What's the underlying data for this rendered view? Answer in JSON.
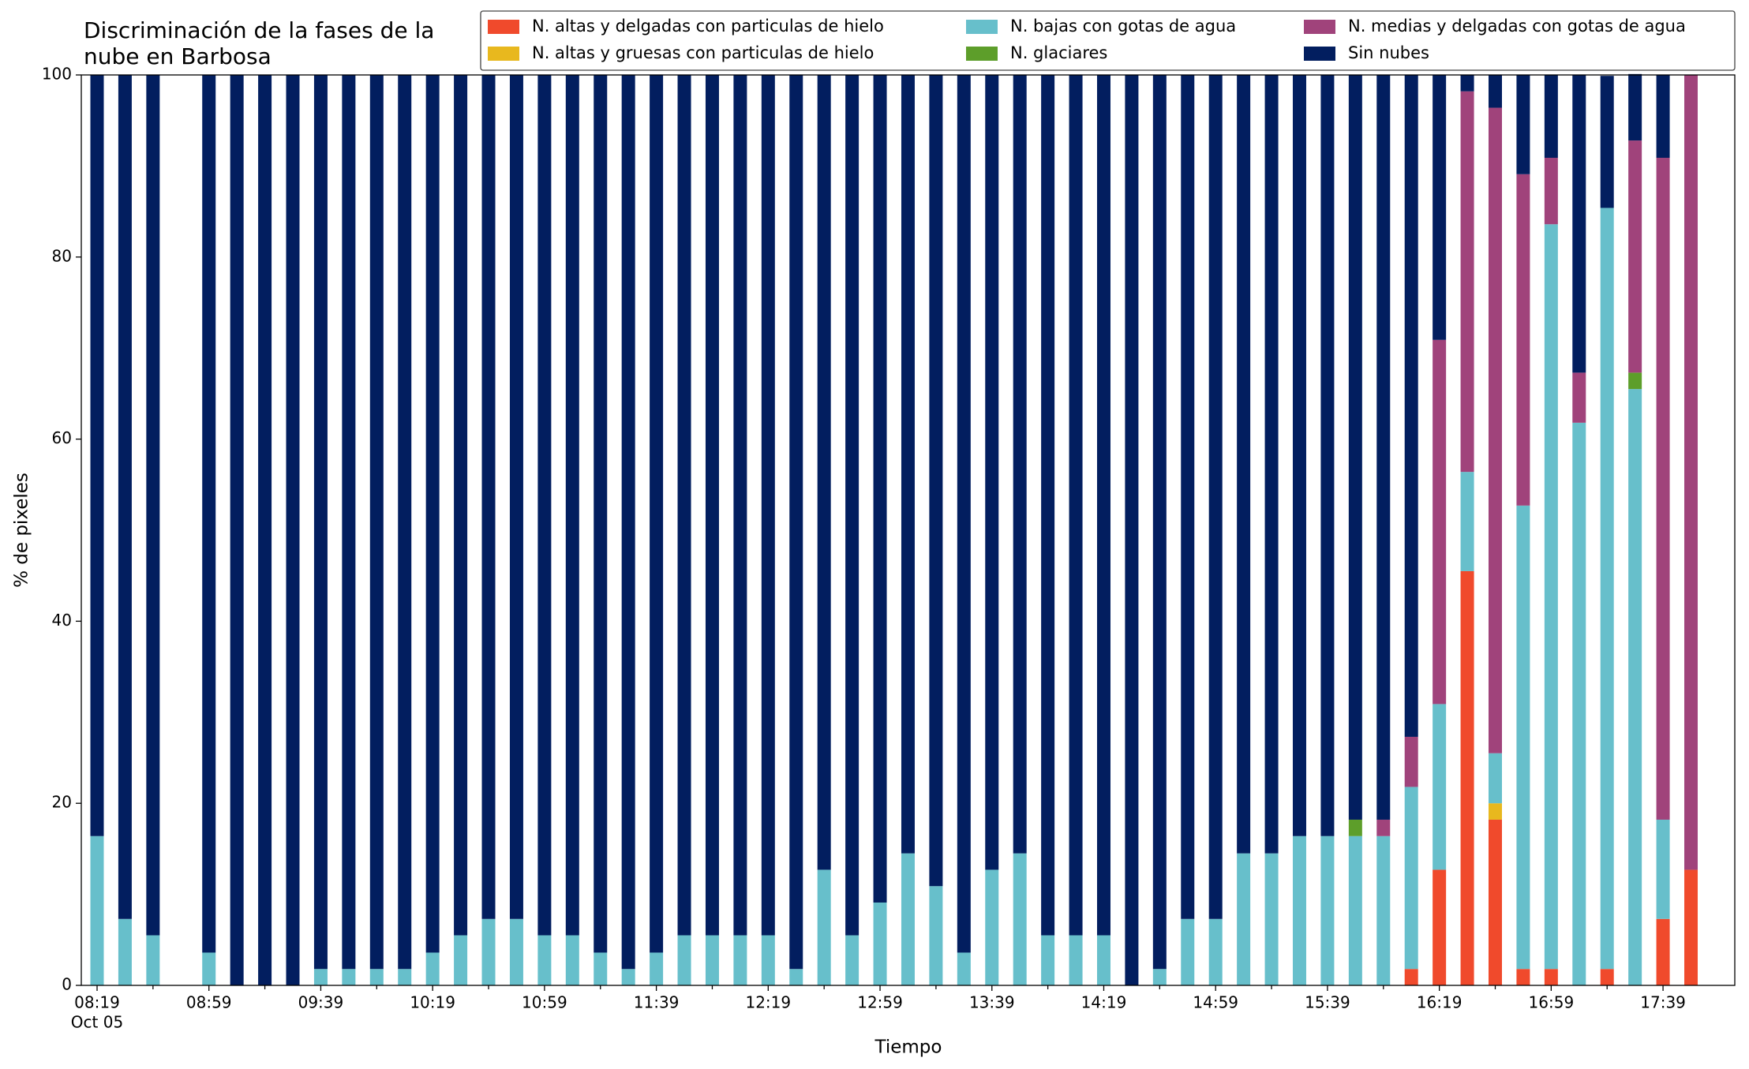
{
  "chart_data": {
    "type": "stacked_bar",
    "title": "Discriminación de la fases de la\nnube en Barbosa",
    "xlabel": "Tiempo",
    "ylabel": "% de pixeles",
    "x_date_label": "Oct 05",
    "categories": [
      "08:19",
      null,
      null,
      null,
      "08:59",
      null,
      null,
      null,
      "09:39",
      null,
      null,
      null,
      "10:19",
      null,
      null,
      null,
      "10:59",
      null,
      null,
      null,
      "11:39",
      null,
      null,
      null,
      "12:19",
      null,
      null,
      null,
      "12:59",
      null,
      null,
      null,
      "13:39",
      null,
      null,
      null,
      "14:19",
      null,
      null,
      null,
      "14:59",
      null,
      null,
      null,
      "15:39",
      null,
      null,
      null,
      "16:19",
      null,
      null,
      null,
      "16:59",
      null,
      null,
      null,
      "17:39",
      null
    ],
    "series": [
      {
        "name": "N. altas y delgadas con particulas de hielo",
        "color": "#f04a2c",
        "values": [
          0,
          0,
          0,
          null,
          0,
          0,
          0,
          0,
          0,
          0,
          0,
          0,
          0,
          0,
          0,
          0,
          0,
          0,
          0,
          0,
          0,
          0,
          0,
          0,
          0,
          0,
          0,
          0,
          0,
          0,
          0,
          0,
          0,
          0,
          0,
          0,
          0,
          0,
          0,
          0,
          0,
          0,
          0,
          0,
          0,
          0,
          0,
          1.8,
          12.7,
          45.5,
          18.2,
          1.8,
          1.8,
          0,
          1.8,
          0,
          7.3,
          12.7
        ]
      },
      {
        "name": "N. altas y gruesas con particulas de hielo",
        "color": "#e8b81e",
        "values": [
          0,
          0,
          0,
          null,
          0,
          0,
          0,
          0,
          0,
          0,
          0,
          0,
          0,
          0,
          0,
          0,
          0,
          0,
          0,
          0,
          0,
          0,
          0,
          0,
          0,
          0,
          0,
          0,
          0,
          0,
          0,
          0,
          0,
          0,
          0,
          0,
          0,
          0,
          0,
          0,
          0,
          0,
          0,
          0,
          0,
          0,
          0,
          0,
          0,
          0,
          1.8,
          0,
          0,
          0,
          0,
          0,
          0,
          0
        ]
      },
      {
        "name": "N. bajas con gotas de agua",
        "color": "#67bfcb",
        "values": [
          16.4,
          7.3,
          5.5,
          null,
          3.6,
          0,
          0,
          0,
          1.8,
          1.8,
          1.8,
          1.8,
          3.6,
          5.5,
          7.3,
          7.3,
          5.5,
          5.5,
          3.6,
          1.8,
          3.6,
          5.5,
          5.5,
          5.5,
          5.5,
          1.8,
          12.7,
          5.5,
          9.1,
          14.5,
          10.9,
          3.6,
          12.7,
          14.5,
          5.5,
          5.5,
          5.5,
          0,
          1.8,
          7.3,
          7.3,
          14.5,
          14.5,
          16.4,
          16.4,
          16.4,
          16.4,
          20,
          18.2,
          10.9,
          5.5,
          50.9,
          81.8,
          61.8,
          83.6,
          65.5,
          10.9,
          0
        ]
      },
      {
        "name": "N. glaciares",
        "color": "#5d9e2a",
        "values": [
          0,
          0,
          0,
          null,
          0,
          0,
          0,
          0,
          0,
          0,
          0,
          0,
          0,
          0,
          0,
          0,
          0,
          0,
          0,
          0,
          0,
          0,
          0,
          0,
          0,
          0,
          0,
          0,
          0,
          0,
          0,
          0,
          0,
          0,
          0,
          0,
          0,
          0,
          0,
          0,
          0,
          0,
          0,
          0,
          0,
          1.8,
          0,
          0,
          0,
          0,
          0,
          0,
          0,
          0,
          0,
          1.8,
          0,
          0
        ]
      },
      {
        "name": "N. medias y delgadas con gotas de agua",
        "color": "#a0437b",
        "values": [
          0,
          0,
          0,
          null,
          0,
          0,
          0,
          0,
          0,
          0,
          0,
          0,
          0,
          0,
          0,
          0,
          0,
          0,
          0,
          0,
          0,
          0,
          0,
          0,
          0,
          0,
          0,
          0,
          0,
          0,
          0,
          0,
          0,
          0,
          0,
          0,
          0,
          0,
          0,
          0,
          0,
          0,
          0,
          0,
          0,
          0,
          1.8,
          5.5,
          40,
          41.8,
          70.9,
          36.4,
          7.3,
          5.5,
          0,
          25.5,
          72.7,
          87.3
        ]
      },
      {
        "name": "Sin nubes",
        "color": "#021e5f",
        "values": [
          83.6,
          92.7,
          94.5,
          null,
          96.4,
          100,
          100,
          100,
          98.2,
          98.2,
          98.2,
          98.2,
          96.4,
          94.5,
          92.7,
          92.7,
          94.5,
          94.5,
          96.4,
          98.2,
          96.4,
          94.5,
          94.5,
          94.5,
          94.5,
          98.2,
          87.3,
          94.5,
          90.9,
          85.5,
          89.1,
          96.4,
          87.3,
          85.5,
          94.5,
          94.5,
          94.5,
          100,
          98.2,
          92.7,
          92.7,
          85.5,
          85.5,
          83.6,
          83.6,
          81.8,
          81.8,
          72.7,
          29.1,
          1.8,
          3.6,
          10.9,
          9.1,
          32.7,
          14.5,
          7.3,
          9.1,
          0
        ]
      }
    ],
    "ylim": [
      0,
      100
    ],
    "yticks": [
      0,
      20,
      40,
      60,
      80,
      100
    ],
    "legend": "upper right"
  }
}
